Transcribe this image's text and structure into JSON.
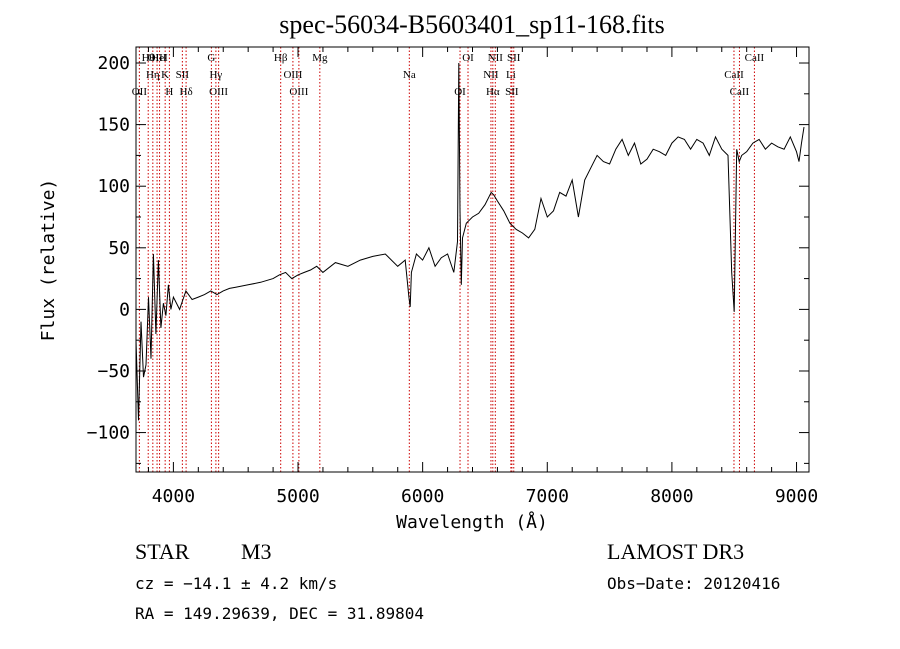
{
  "chart_data": {
    "type": "line",
    "title": "spec-56034-B5603401_sp11-168.fits",
    "xlabel": "Wavelength (Å)",
    "ylabel": "Flux (relative)",
    "xlim": [
      3700,
      9100
    ],
    "ylim": [
      -132,
      213
    ],
    "x_ticks": [
      4000,
      5000,
      6000,
      7000,
      8000,
      9000
    ],
    "y_ticks": [
      -100,
      -50,
      0,
      50,
      100,
      150,
      200
    ],
    "line_color": "#000000",
    "marker_color": "#cc0000",
    "series": [
      {
        "x": [
          3700,
          3720,
          3740,
          3760,
          3780,
          3800,
          3820,
          3840,
          3860,
          3880,
          3900,
          3920,
          3940,
          3960,
          3980,
          4000,
          4050,
          4100,
          4150,
          4200,
          4250,
          4300,
          4350,
          4400,
          4450,
          4500,
          4600,
          4700,
          4800,
          4850,
          4900,
          4950,
          5000,
          5050,
          5100,
          5150,
          5200,
          5300,
          5400,
          5500,
          5600,
          5700,
          5800,
          5860,
          5890,
          5900,
          5910,
          5950,
          6000,
          6050,
          6100,
          6150,
          6200,
          6250,
          6280,
          6290,
          6300,
          6310,
          6320,
          6350,
          6400,
          6450,
          6500,
          6550,
          6570,
          6600,
          6650,
          6700,
          6750,
          6800,
          6850,
          6900,
          6950,
          7000,
          7050,
          7100,
          7150,
          7200,
          7250,
          7300,
          7350,
          7400,
          7450,
          7500,
          7550,
          7600,
          7650,
          7700,
          7750,
          7800,
          7850,
          7900,
          7950,
          8000,
          8050,
          8100,
          8150,
          8200,
          8250,
          8300,
          8350,
          8400,
          8450,
          8480,
          8500,
          8520,
          8540,
          8560,
          8600,
          8650,
          8700,
          8750,
          8800,
          8850,
          8900,
          8950,
          9000,
          9020,
          9040,
          9060
        ],
        "y": [
          -25,
          -90,
          -10,
          -55,
          -45,
          10,
          -40,
          45,
          -20,
          40,
          -15,
          5,
          -5,
          20,
          0,
          10,
          0,
          15,
          8,
          10,
          12,
          15,
          12,
          15,
          17,
          18,
          20,
          22,
          25,
          28,
          30,
          25,
          28,
          30,
          32,
          35,
          30,
          38,
          35,
          40,
          43,
          45,
          35,
          40,
          10,
          2,
          30,
          45,
          40,
          50,
          35,
          42,
          45,
          30,
          55,
          200,
          80,
          20,
          58,
          70,
          75,
          78,
          85,
          95,
          93,
          88,
          80,
          70,
          65,
          62,
          58,
          65,
          90,
          75,
          80,
          95,
          92,
          105,
          75,
          105,
          115,
          125,
          120,
          118,
          130,
          138,
          125,
          135,
          118,
          122,
          130,
          128,
          125,
          135,
          140,
          138,
          130,
          138,
          135,
          125,
          140,
          130,
          125,
          30,
          -2,
          130,
          120,
          125,
          128,
          135,
          138,
          130,
          135,
          132,
          130,
          140,
          128,
          120,
          135,
          148
        ]
      }
    ],
    "line_markers": [
      {
        "label": "Hθ",
        "x": 3798
      },
      {
        "label": "Hη",
        "x": 3835
      },
      {
        "label": "OII",
        "x": 3727
      },
      {
        "label": "OIII",
        "x": 3869
      },
      {
        "label": "K",
        "x": 3934
      },
      {
        "label": "H",
        "x": 3968
      },
      {
        "label": "HeI",
        "x": 3889
      },
      {
        "label": "SII",
        "x": 4072
      },
      {
        "label": "Hδ",
        "x": 4102
      },
      {
        "label": "G",
        "x": 4305
      },
      {
        "label": "Hγ",
        "x": 4341
      },
      {
        "label": "OIII",
        "x": 4363
      },
      {
        "label": "Hβ",
        "x": 4861
      },
      {
        "label": "OIII",
        "x": 4959
      },
      {
        "label": "OIII",
        "x": 5007
      },
      {
        "label": "Mg",
        "x": 5175
      },
      {
        "label": "Na",
        "x": 5893
      },
      {
        "label": "OI",
        "x": 6300
      },
      {
        "label": "OI",
        "x": 6364
      },
      {
        "label": "NII",
        "x": 6548
      },
      {
        "label": "Hα",
        "x": 6563
      },
      {
        "label": "NII",
        "x": 6583
      },
      {
        "label": "Li",
        "x": 6708
      },
      {
        "label": "SII",
        "x": 6716
      },
      {
        "label": "SII",
        "x": 6731
      },
      {
        "label": "CaII",
        "x": 8498
      },
      {
        "label": "CaII",
        "x": 8542
      },
      {
        "label": "CaII",
        "x": 8662
      }
    ]
  },
  "info": {
    "object_type": "STAR",
    "subclass": "M3",
    "survey": "LAMOST DR3",
    "cz_line": "cz = −14.1 ± 4.2 km/s",
    "obs_date_line": "Obs−Date: 20120416",
    "radec_line": "RA = 149.29639, DEC =  31.89804"
  }
}
